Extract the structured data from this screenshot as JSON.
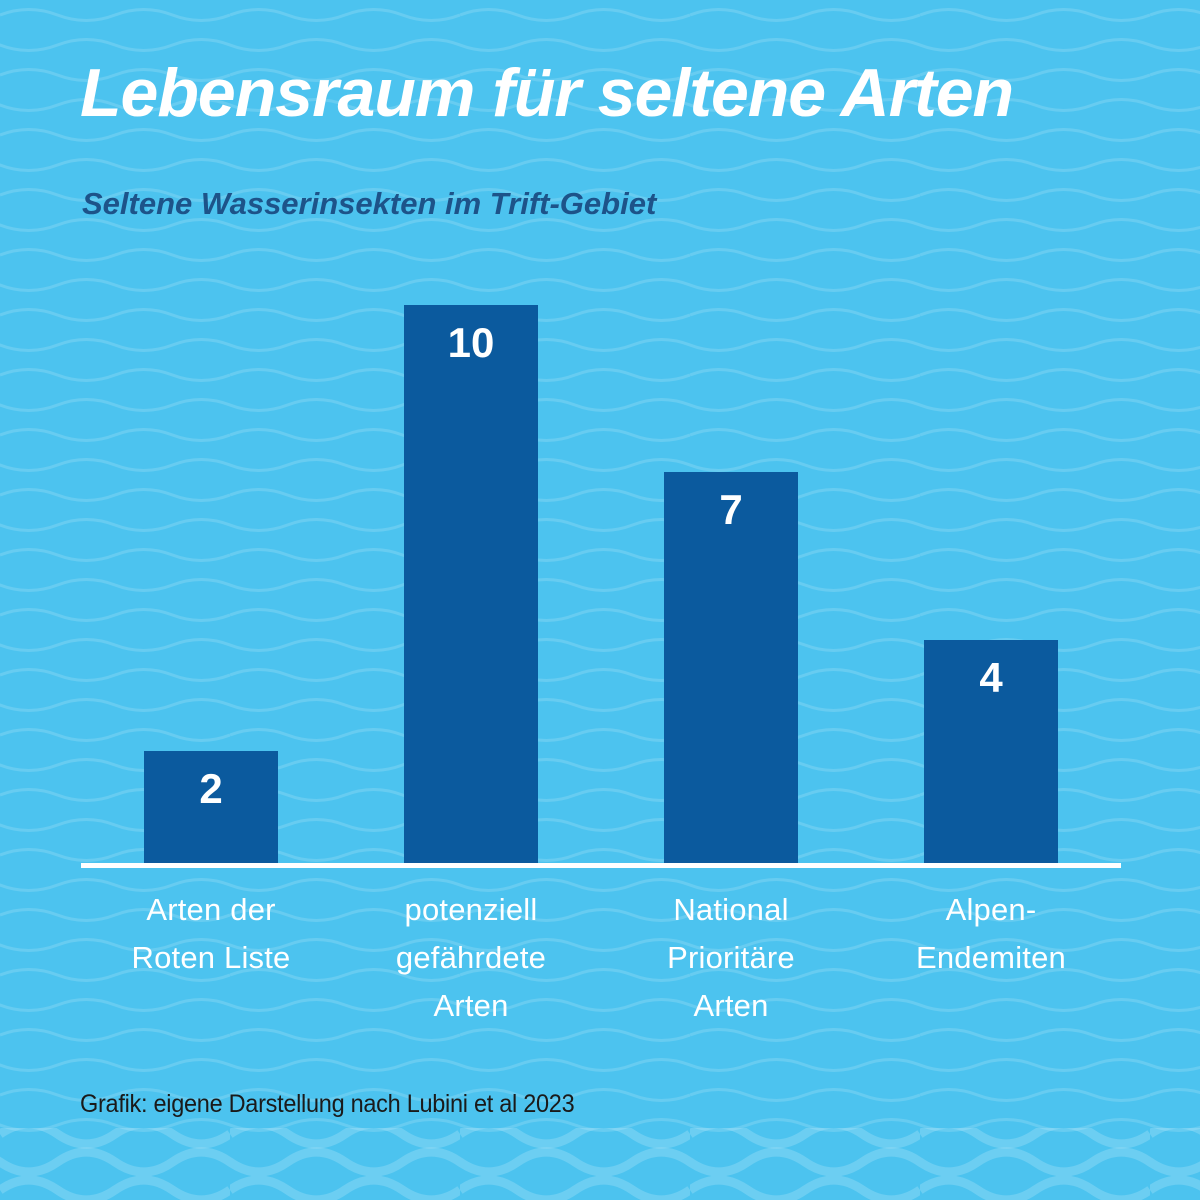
{
  "page": {
    "title": "Lebensraum für seltene Arten",
    "subtitle": "Seltene Wasserinsekten im Trift-Gebiet",
    "source": "Grafik: eigene Darstellung nach Lubini et al 2023"
  },
  "colors": {
    "background": "#4CC3EF",
    "wave_line": "#FFFFFF",
    "bar_fill": "#0B5A9E",
    "title_text": "#FFFFFF",
    "subtitle_text": "#1D5389",
    "category_text": "#FFFFFF",
    "axis_line": "#FFFFFF",
    "source_text": "#1A1A1A"
  },
  "chart_data": {
    "type": "bar",
    "title": "Lebensraum für seltene Arten",
    "subtitle": "Seltene Wasserinsekten im Trift-Gebiet",
    "categories": [
      "Arten der Roten Liste",
      "potenziell gefährdete Arten",
      "National Prioritäre Arten",
      "Alpen-Endemiten"
    ],
    "category_lines": [
      [
        "Arten der",
        "Roten Liste"
      ],
      [
        "potenziell",
        "gefährdete",
        "Arten"
      ],
      [
        "National",
        "Prioritäre",
        "Arten"
      ],
      [
        "Alpen-",
        "Endemiten"
      ]
    ],
    "values": [
      2,
      10,
      7,
      4
    ],
    "bar_labels": [
      "2",
      "10",
      "7",
      "4"
    ],
    "xlabel": "",
    "ylabel": "",
    "ylim": [
      0,
      10
    ],
    "grid": false,
    "legend": false,
    "value_labels_position": "inside-top",
    "annotation": "Grafik: eigene Darstellung nach Lubini et al 2023"
  }
}
